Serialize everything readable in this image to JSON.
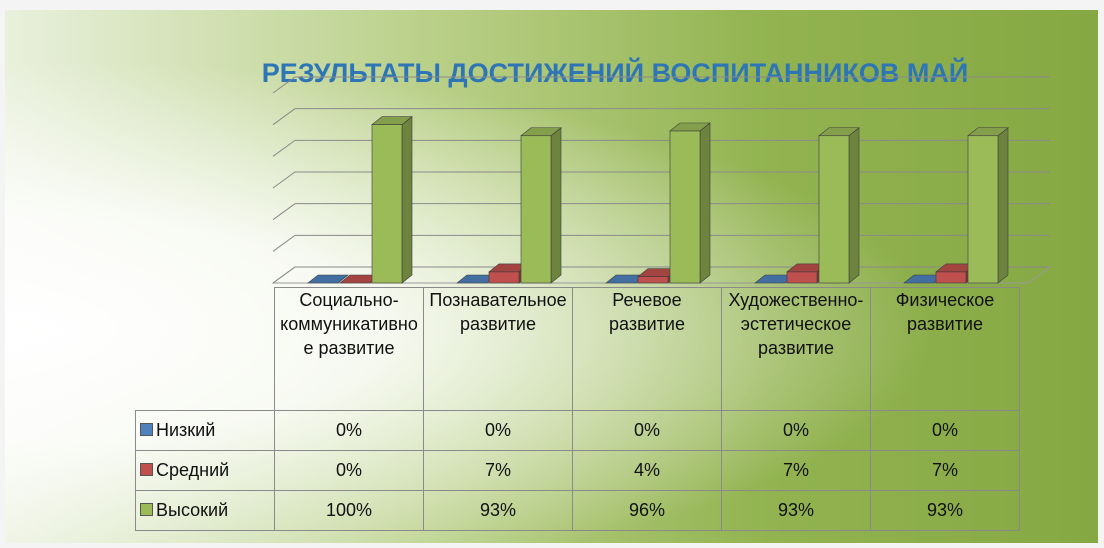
{
  "chart_data": {
    "type": "bar3d",
    "title": "РЕЗУЛЬТАТЫ ДОСТИЖЕНИЙ ВОСПИТАННИКОВ МАЙ",
    "categories": [
      "Социально-коммуникативное развитие",
      "Познавательное развитие",
      "Речевое развитие",
      "Художественно-эстетическое развитие",
      "Физическое развитие"
    ],
    "series": [
      {
        "name": "Низкий",
        "color": "#4f81bd",
        "values": [
          0,
          0,
          0,
          0,
          0
        ],
        "value_labels": [
          "0%",
          "0%",
          "0%",
          "0%",
          "0%"
        ]
      },
      {
        "name": "Средний",
        "color": "#c0504d",
        "values": [
          0,
          7,
          4,
          7,
          7
        ],
        "value_labels": [
          "0%",
          "7%",
          "4%",
          "7%",
          "7%"
        ]
      },
      {
        "name": "Высокий",
        "color": "#9bbb59",
        "values": [
          100,
          93,
          96,
          93,
          93
        ],
        "value_labels": [
          "100%",
          "93%",
          "96%",
          "93%",
          "93%"
        ]
      }
    ],
    "ylim": [
      0,
      120
    ],
    "yticks": [
      0,
      20,
      40,
      60,
      80,
      100,
      120
    ],
    "grid": true,
    "legend": "table"
  }
}
